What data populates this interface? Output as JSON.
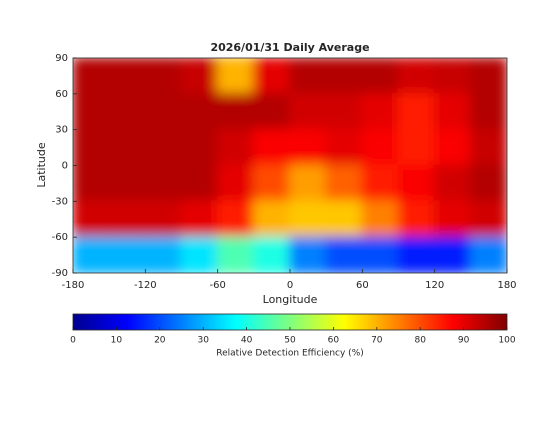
{
  "chart_data": {
    "type": "heatmap",
    "title": "2026/01/31 Daily Average",
    "xlabel": "Longitude",
    "ylabel": "Latitude",
    "xlim": [
      -180,
      180
    ],
    "ylim": [
      -90,
      90
    ],
    "xticks": [
      -180,
      -120,
      -60,
      0,
      60,
      120,
      180
    ],
    "yticks": [
      -90,
      -60,
      -30,
      0,
      30,
      60,
      90
    ],
    "x": [
      -165,
      -135,
      -105,
      -75,
      -45,
      -15,
      15,
      45,
      75,
      105,
      135,
      165
    ],
    "y": [
      75,
      45,
      15,
      -15,
      -45,
      -75
    ],
    "z": [
      [
        95,
        95,
        95,
        93,
        70,
        90,
        95,
        95,
        95,
        92,
        93,
        95
      ],
      [
        95,
        95,
        95,
        95,
        95,
        95,
        92,
        92,
        90,
        85,
        90,
        95
      ],
      [
        95,
        95,
        95,
        95,
        92,
        88,
        88,
        90,
        88,
        85,
        88,
        93
      ],
      [
        95,
        95,
        95,
        95,
        90,
        80,
        72,
        78,
        85,
        88,
        92,
        95
      ],
      [
        92,
        92,
        92,
        90,
        85,
        70,
        68,
        68,
        75,
        85,
        90,
        92
      ],
      [
        30,
        30,
        30,
        35,
        45,
        40,
        25,
        20,
        20,
        15,
        15,
        25
      ]
    ],
    "colormap": "jet",
    "clim": [
      0,
      100
    ],
    "cticks": [
      0,
      10,
      20,
      30,
      40,
      50,
      60,
      70,
      80,
      90,
      100
    ],
    "colorbar_label": "Relative Detection Efficiency (%)"
  }
}
